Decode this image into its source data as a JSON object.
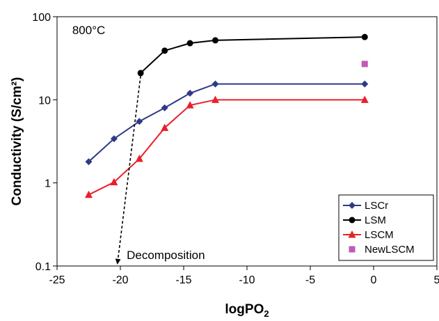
{
  "chart_data": {
    "type": "line",
    "title": "",
    "xlabel": "logPO",
    "xlabel_subscript": "2",
    "ylabel": "Conductivity (S/cm²)",
    "xlim": [
      -25,
      5
    ],
    "ylim": [
      0.1,
      100
    ],
    "y_scale": "log",
    "grid": false,
    "legend_position": "bottom-right",
    "x_ticks": [
      "-25",
      "-20",
      "-15",
      "-10",
      "-5",
      "0",
      "5"
    ],
    "y_ticks": [
      "0.1",
      "1",
      "10",
      "100"
    ],
    "series": [
      {
        "name": "LSCr",
        "color": "#2e3a87",
        "marker": "diamond",
        "line": true,
        "x": [
          -22.5,
          -20.5,
          -18.5,
          -16.5,
          -14.5,
          -12.5,
          -0.7
        ],
        "y": [
          1.8,
          3.4,
          5.5,
          8.0,
          12.0,
          15.5,
          15.5
        ]
      },
      {
        "name": "LSM",
        "color": "#000000",
        "marker": "circle",
        "line": true,
        "x": [
          -18.4,
          -16.5,
          -14.5,
          -12.5,
          -0.7
        ],
        "y": [
          21,
          39,
          48,
          52,
          57
        ]
      },
      {
        "name": "LSCM",
        "color": "#e8202a",
        "marker": "triangle",
        "line": true,
        "x": [
          -22.5,
          -20.5,
          -18.5,
          -16.5,
          -14.5,
          -12.5,
          -0.7
        ],
        "y": [
          0.72,
          1.02,
          1.95,
          4.6,
          8.6,
          10.0,
          10.0
        ]
      },
      {
        "name": "NewLSCM",
        "color": "#c05ab5",
        "marker": "square",
        "line": false,
        "x": [
          -0.7
        ],
        "y": [
          27
        ]
      }
    ],
    "annotations": {
      "temperature": "800°C",
      "decomposition": "Decomposition"
    },
    "decomposition_arrow": {
      "from": [
        -18.4,
        21
      ],
      "to": [
        -20.2,
        0.1
      ]
    }
  }
}
